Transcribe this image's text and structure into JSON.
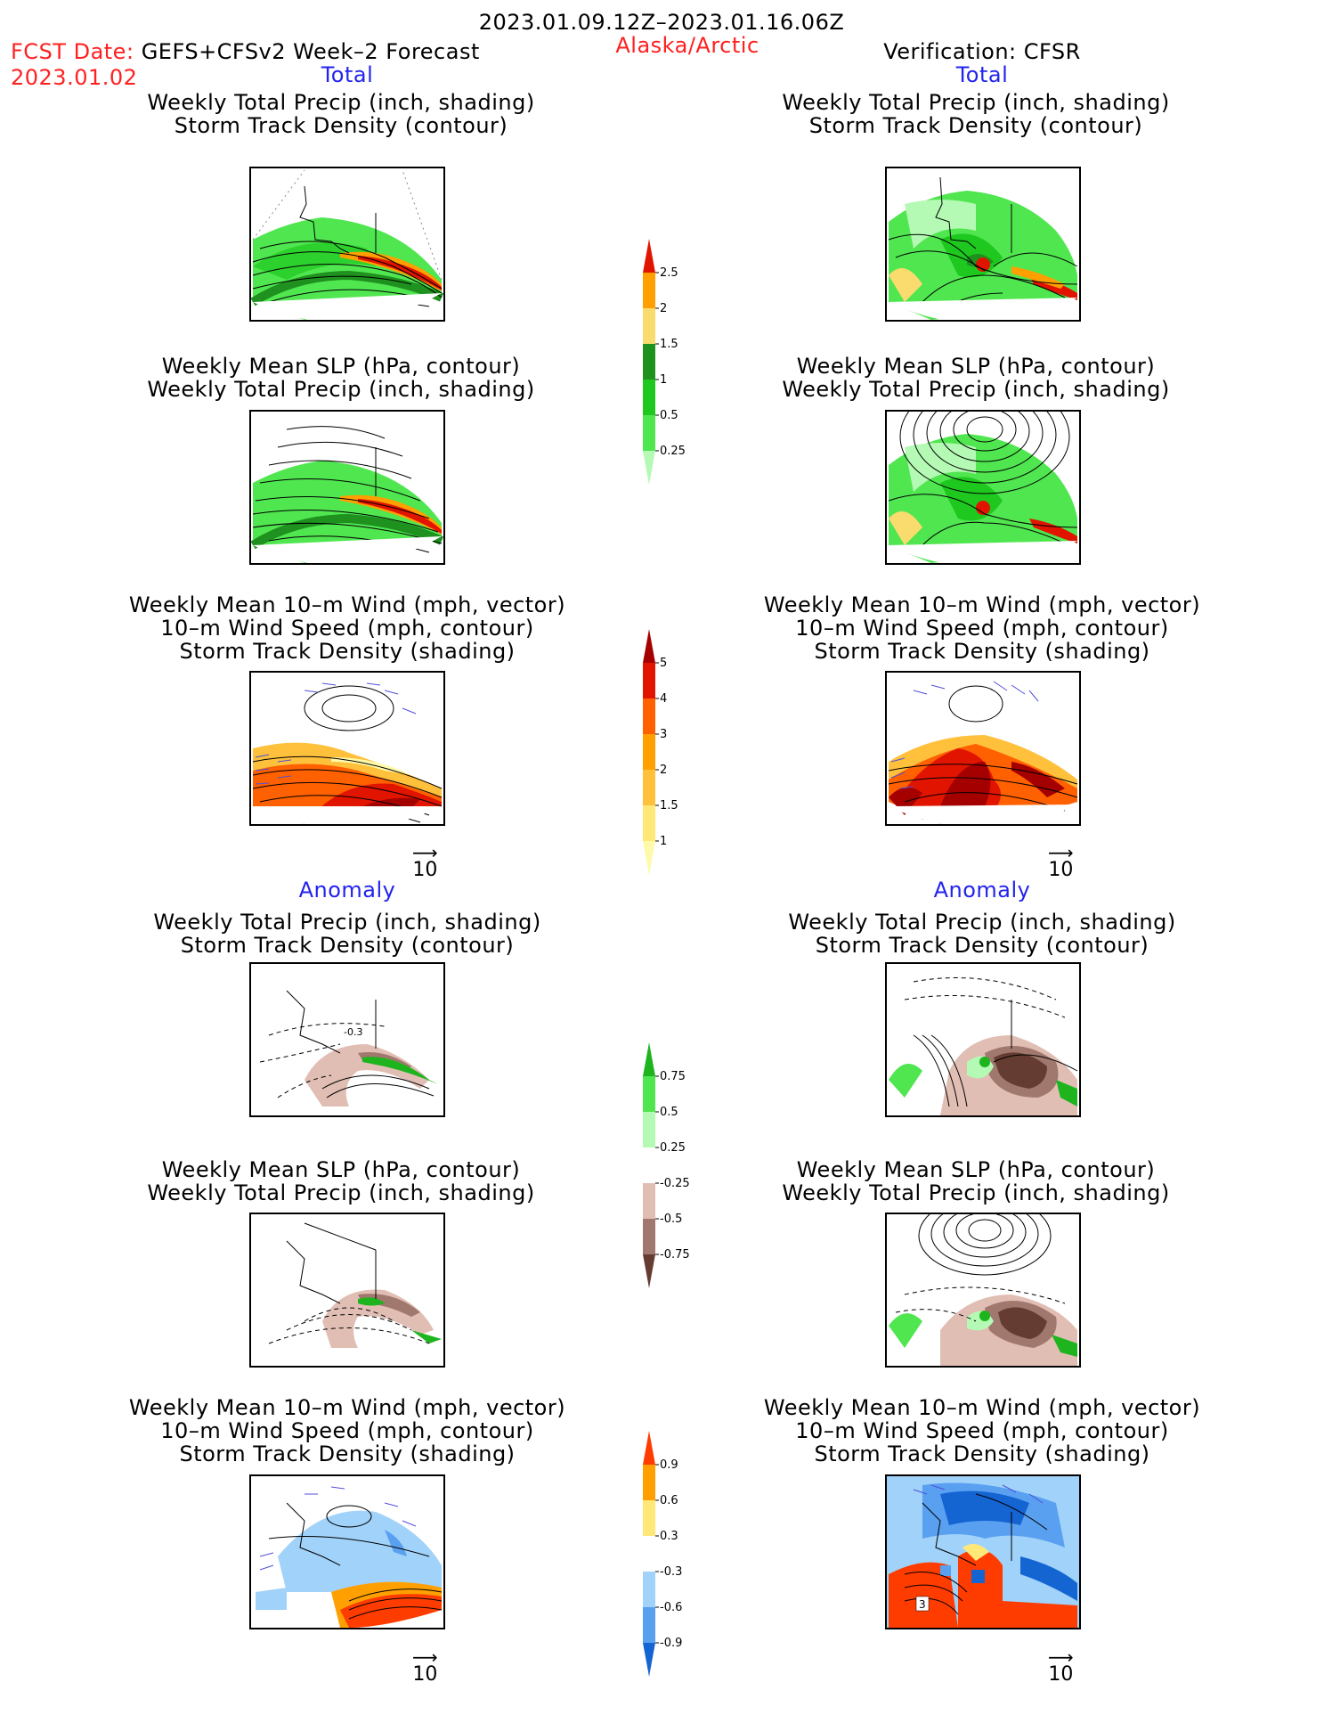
{
  "header": {
    "period": "2023.01.09.12Z–2023.01.16.06Z",
    "fcst_label": "FCST Date:",
    "fcst_model": "GEFS+CFSv2 Week–2 Forecast",
    "fcst_date": "2023.01.02",
    "region": "Alaska/Arctic",
    "verification": "Verification: CFSR"
  },
  "sections": {
    "total": "Total",
    "anomaly": "Anomaly"
  },
  "panel_titles": {
    "precip_storm": [
      "Weekly Total Precip (inch, shading)",
      "Storm Track Density (contour)"
    ],
    "slp_precip": [
      "Weekly Mean SLP (hPa, contour)",
      "Weekly Total Precip (inch, shading)"
    ],
    "wind_storm": [
      "Weekly Mean 10–m Wind (mph, vector)",
      "10–m Wind Speed (mph, contour)",
      "Storm Track Density (shading)"
    ]
  },
  "vector_ref": "10",
  "chart_data": [
    {
      "type": "colorbar",
      "name": "total_precip",
      "levels": [
        "0.25",
        "0.5",
        "1",
        "1.5",
        "2",
        "2.5"
      ],
      "colors": [
        "#b4fab4",
        "#50e650",
        "#1ec81e",
        "#1e911e",
        "#fadc6e",
        "#ffa000",
        "#e11400"
      ]
    },
    {
      "type": "colorbar",
      "name": "total_storm_density",
      "levels": [
        "1",
        "1.5",
        "2",
        "3",
        "4",
        "5"
      ],
      "colors": [
        "#fffaaa",
        "#ffe878",
        "#ffc03c",
        "#ffa000",
        "#ff6000",
        "#e11400",
        "#a50000"
      ]
    },
    {
      "type": "colorbar",
      "name": "anomaly_precip",
      "levels": [
        "-0.75",
        "-0.5",
        "-0.25",
        "0.25",
        "0.5",
        "0.75"
      ],
      "colors": [
        "#643c32",
        "#a0786e",
        "#e1beb4",
        "#ffffff",
        "#b4fab4",
        "#50e650",
        "#1eb41e"
      ]
    },
    {
      "type": "colorbar",
      "name": "anomaly_storm_density",
      "levels": [
        "-0.9",
        "-0.6",
        "-0.3",
        "0.3",
        "0.6",
        "0.9"
      ],
      "colors": [
        "#1464d2",
        "#5aa0f0",
        "#a0d2fa",
        "#ffffff",
        "#ffe878",
        "#ffa000",
        "#ff3c00"
      ]
    }
  ],
  "map_labels": {
    "anom_precip_contour": "-0.3",
    "anom_wind_right_label": "3"
  }
}
